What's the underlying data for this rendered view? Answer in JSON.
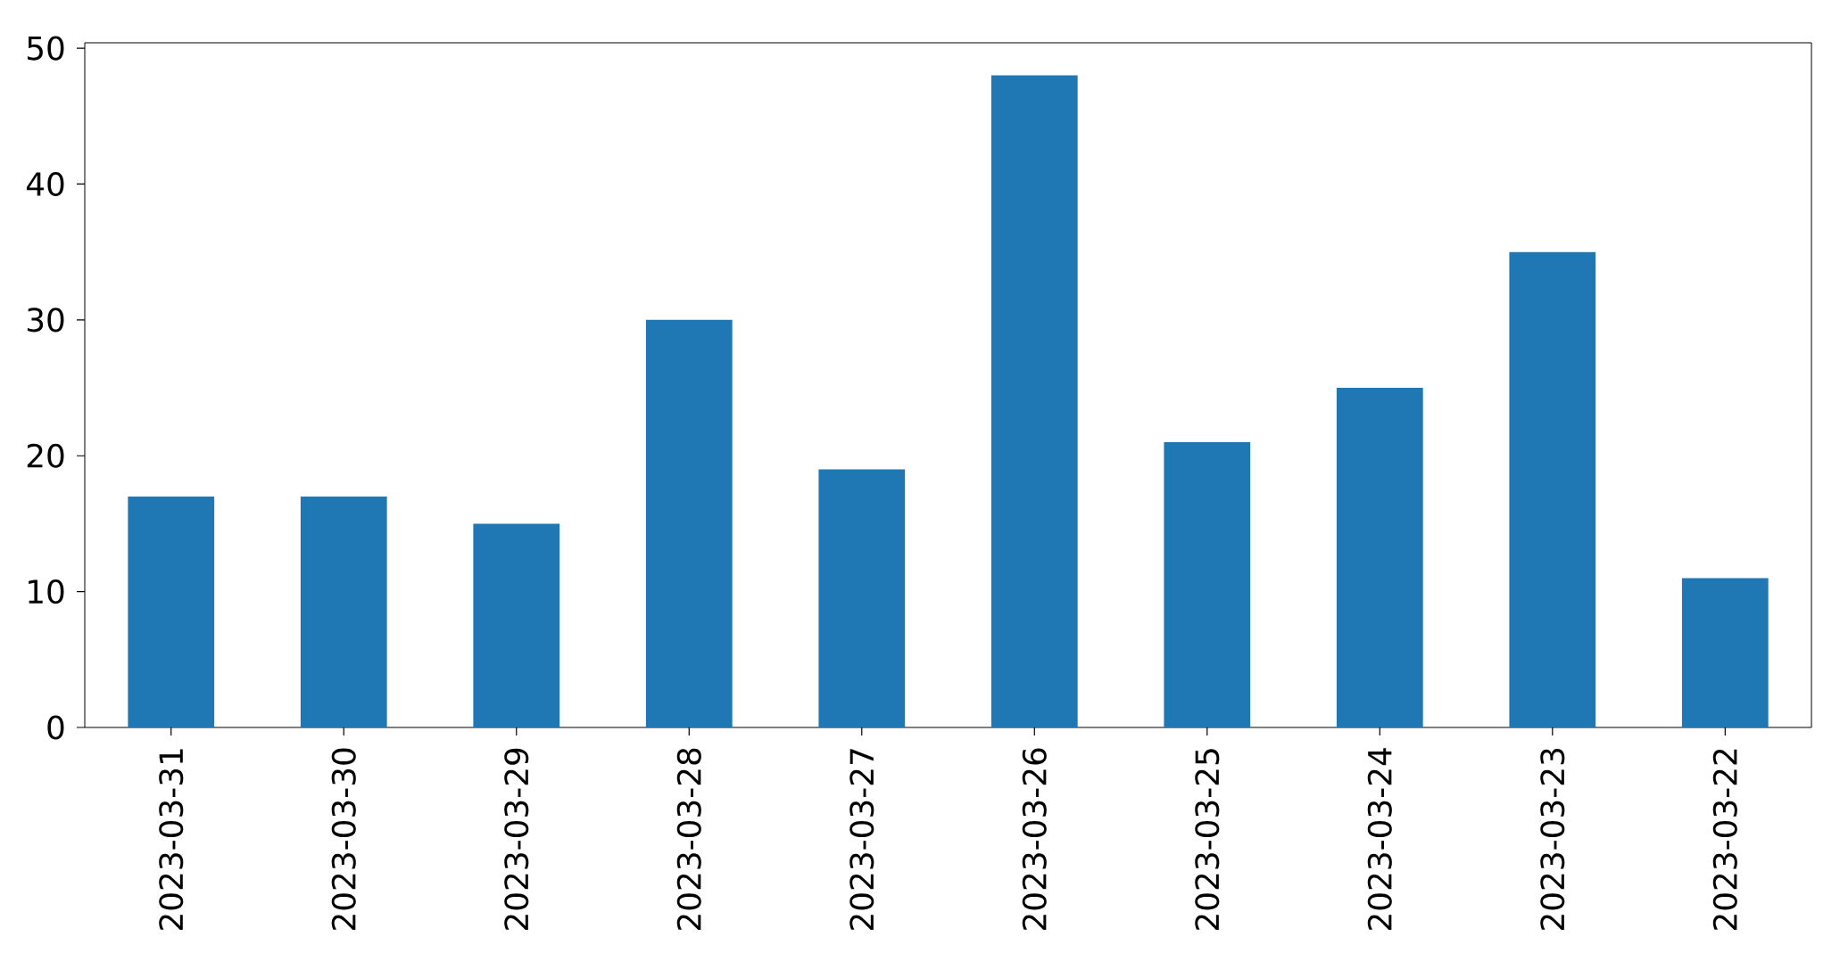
{
  "chart_data": {
    "type": "bar",
    "categories": [
      "2023-03-31",
      "2023-03-30",
      "2023-03-29",
      "2023-03-28",
      "2023-03-27",
      "2023-03-26",
      "2023-03-25",
      "2023-03-24",
      "2023-03-23",
      "2023-03-22"
    ],
    "values": [
      17,
      17,
      15,
      30,
      19,
      48,
      21,
      25,
      35,
      11
    ],
    "color": "#1f77b4",
    "ylim": [
      0,
      50.4
    ],
    "yticks": [
      0,
      10,
      20,
      30,
      40,
      50
    ]
  }
}
